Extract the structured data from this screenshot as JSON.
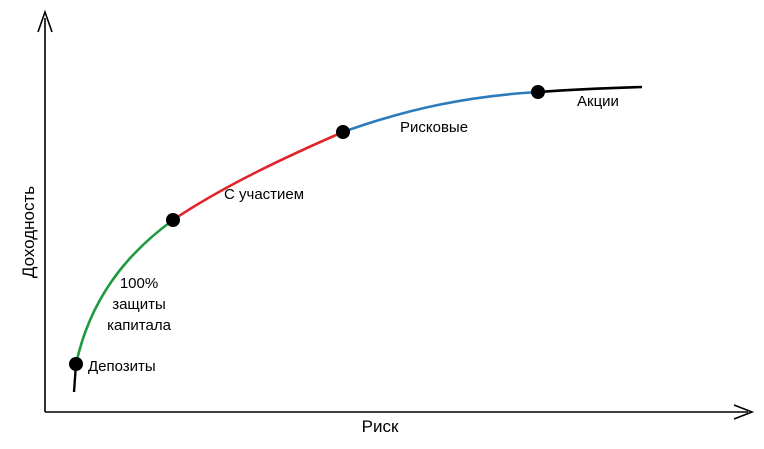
{
  "axes": {
    "x_title": "Риск",
    "y_title": "Доходность"
  },
  "labels": {
    "deposits": "Депозиты",
    "capital_protection": [
      "100%",
      "защиты",
      "капитала"
    ],
    "participation": "С участием",
    "risky": "Рисковые",
    "stocks": "Акции"
  },
  "colors": {
    "axis": "#000000",
    "curve_start": "#000000",
    "capital_protection": "#1f9a3f",
    "participation": "#e0262b",
    "risky": "#2b7bbd",
    "stocks": "#000000",
    "point": "#000000"
  }
}
